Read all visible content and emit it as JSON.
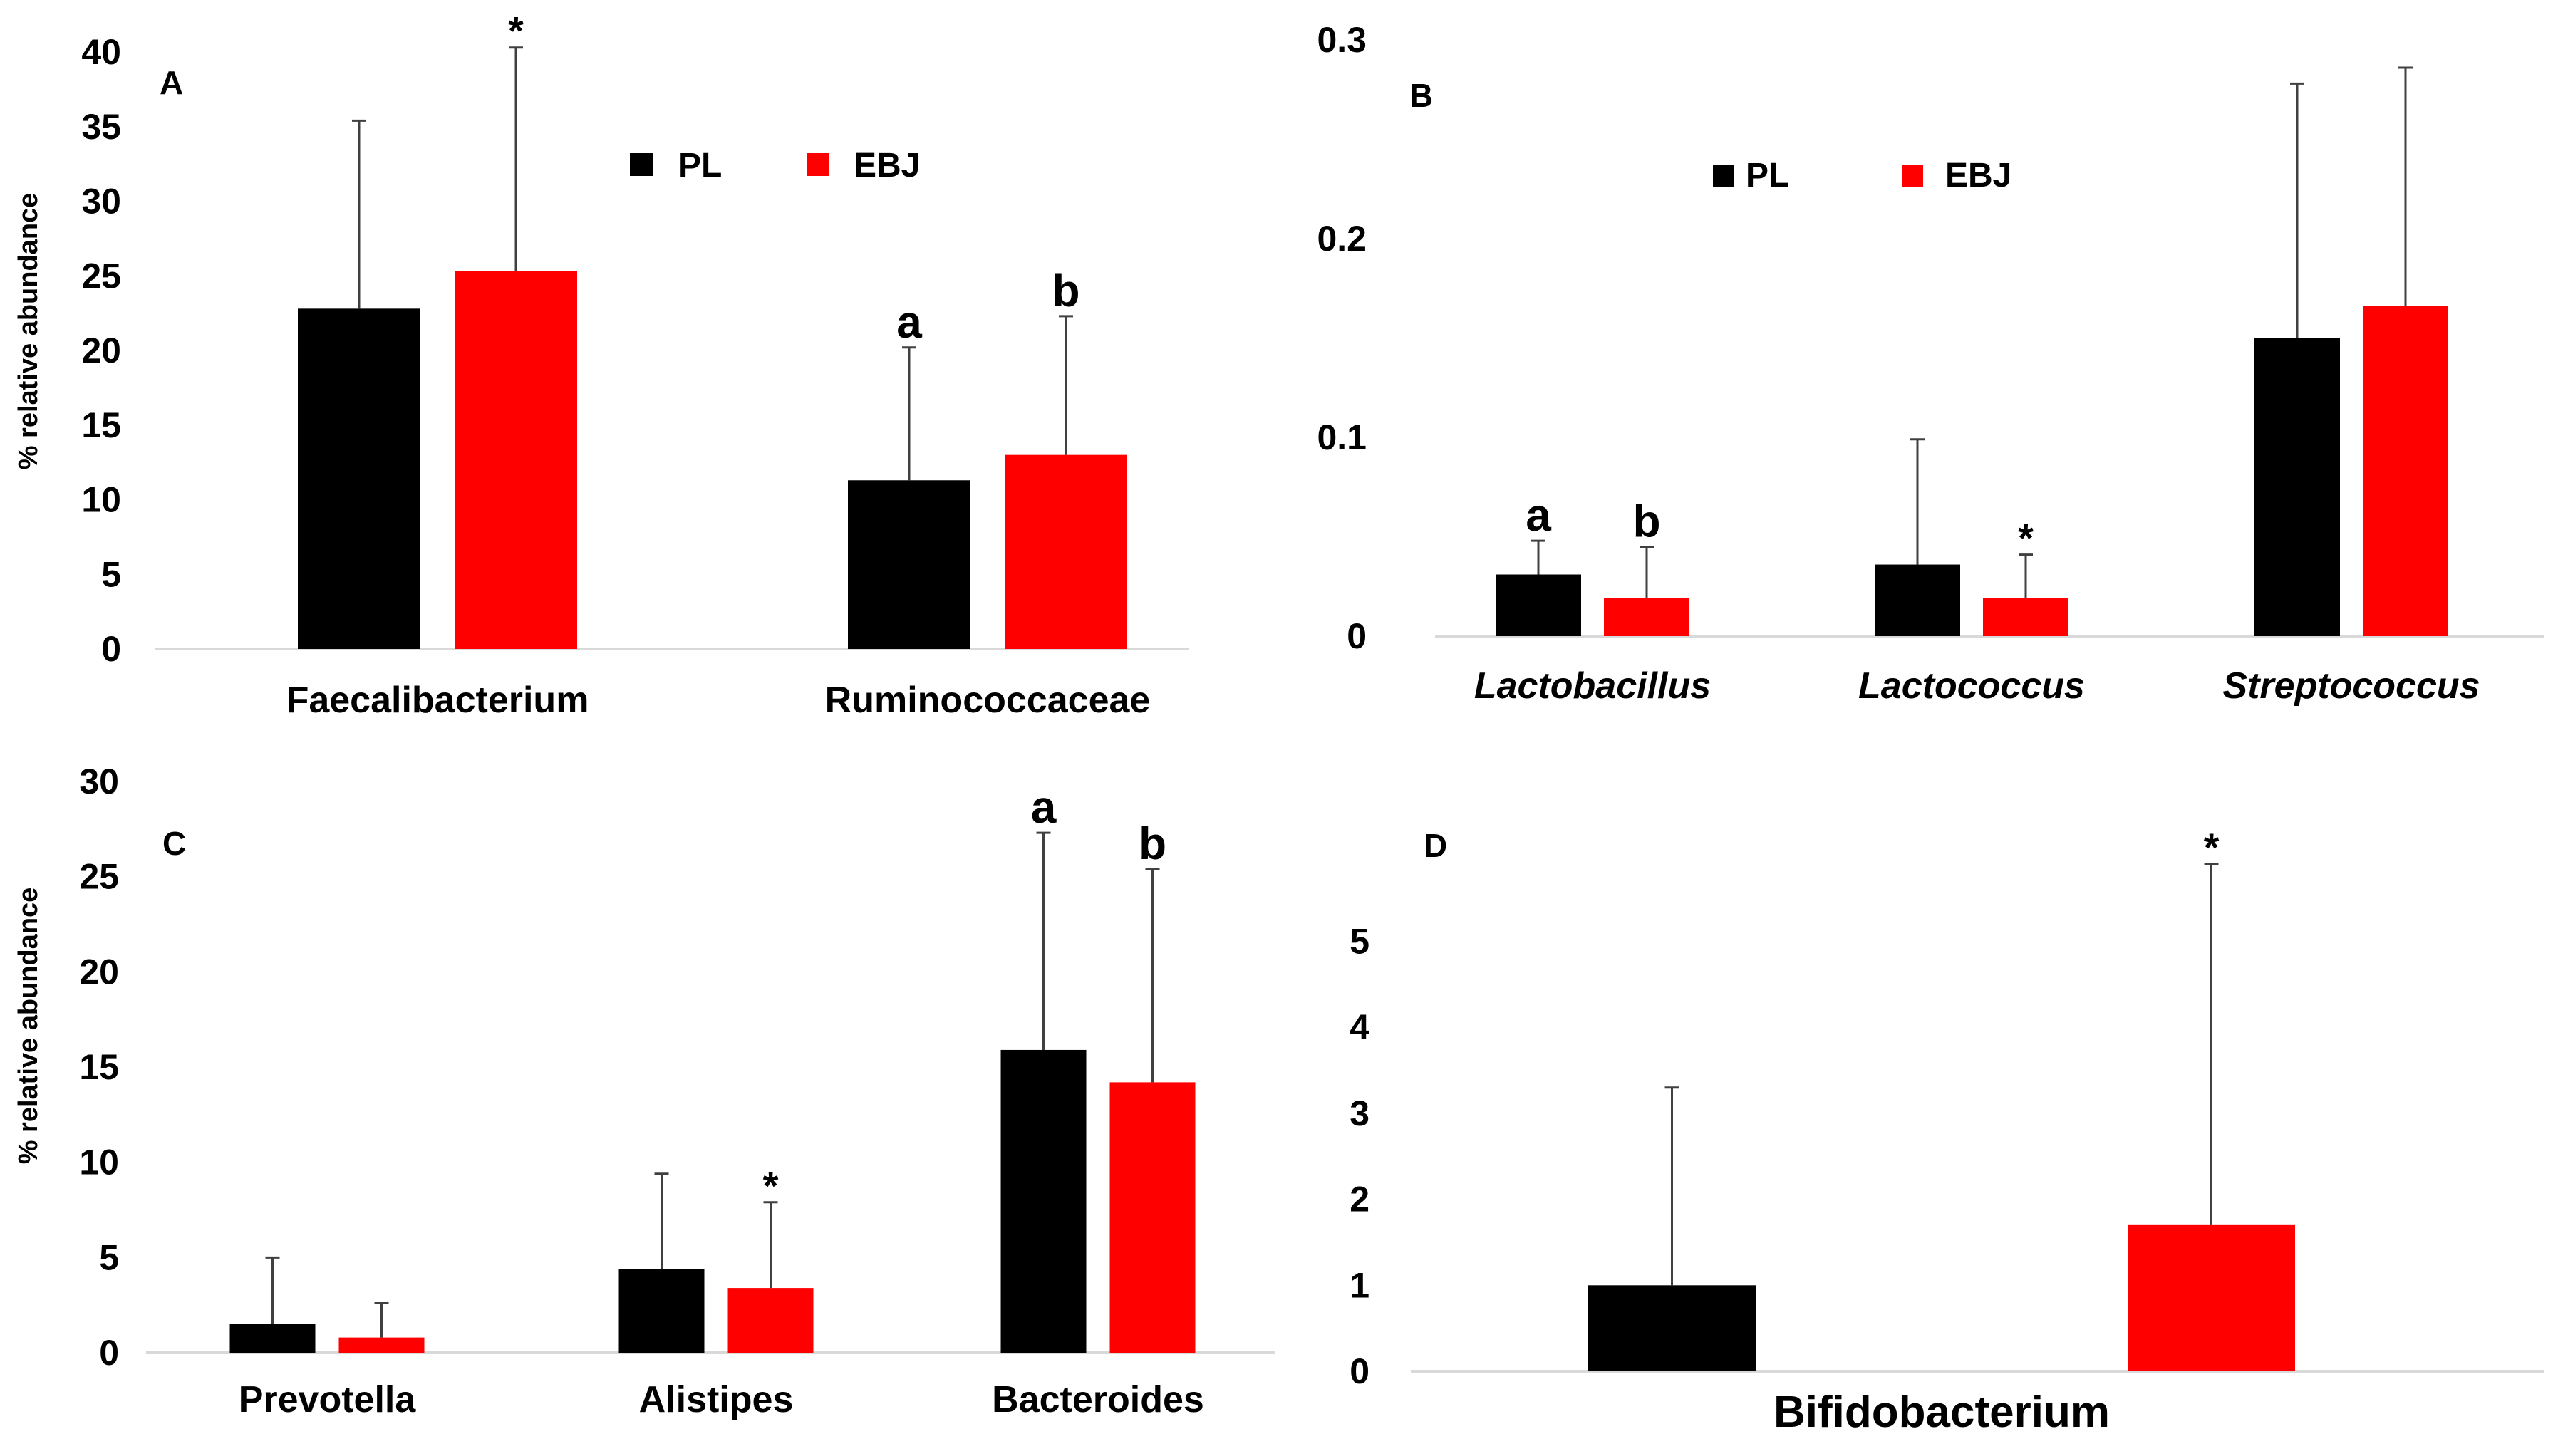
{
  "legend": {
    "pl_label": "PL",
    "ebj_label": "EBJ"
  },
  "colors": {
    "PL": "#000000",
    "EBJ": "#ff0000"
  },
  "chart_data": [
    {
      "panel": "A",
      "type": "bar",
      "ylabel": "% relative abundance",
      "ylim": [
        0,
        40
      ],
      "yticks": [
        0,
        5,
        10,
        15,
        20,
        25,
        30,
        35,
        40
      ],
      "categories": [
        "Faecalibacterium",
        "Ruminococcaceae"
      ],
      "italic_categories": false,
      "series": [
        {
          "name": "PL",
          "values": [
            22.8,
            11.3
          ],
          "errors": [
            12.6,
            8.9
          ]
        },
        {
          "name": "EBJ",
          "values": [
            25.3,
            13.0
          ],
          "errors": [
            15.0,
            9.3
          ]
        }
      ],
      "annotations": [
        {
          "category": 0,
          "series": 1,
          "text": "*"
        },
        {
          "category": 1,
          "series": 0,
          "text": "a"
        },
        {
          "category": 1,
          "series": 1,
          "text": "b"
        }
      ]
    },
    {
      "panel": "B",
      "type": "bar",
      "ylabel": "",
      "ylim": [
        0,
        0.3
      ],
      "yticks": [
        0,
        0.1,
        0.2,
        0.3
      ],
      "categories": [
        "Lactobacillus",
        "Lactococcus",
        "Streptococcus"
      ],
      "italic_categories": true,
      "series": [
        {
          "name": "PL",
          "values": [
            0.031,
            0.036,
            0.15
          ],
          "errors": [
            0.017,
            0.063,
            0.128
          ]
        },
        {
          "name": "EBJ",
          "values": [
            0.019,
            0.019,
            0.166
          ],
          "errors": [
            0.026,
            0.022,
            0.12
          ]
        }
      ],
      "annotations": [
        {
          "category": 0,
          "series": 0,
          "text": "a"
        },
        {
          "category": 0,
          "series": 1,
          "text": "b"
        },
        {
          "category": 1,
          "series": 1,
          "text": "*"
        }
      ]
    },
    {
      "panel": "C",
      "type": "bar",
      "ylabel": "% relative abundance",
      "ylim": [
        0,
        30
      ],
      "yticks": [
        0,
        5,
        10,
        15,
        20,
        25,
        30
      ],
      "categories": [
        "Prevotella",
        "Alistipes",
        "Bacteroides"
      ],
      "italic_categories": false,
      "series": [
        {
          "name": "PL",
          "values": [
            1.5,
            4.4,
            15.9
          ],
          "errors": [
            3.5,
            5.0,
            11.4
          ]
        },
        {
          "name": "EBJ",
          "values": [
            0.8,
            3.4,
            14.2
          ],
          "errors": [
            1.8,
            4.5,
            11.2
          ]
        }
      ],
      "annotations": [
        {
          "category": 1,
          "series": 1,
          "text": "*"
        },
        {
          "category": 2,
          "series": 0,
          "text": "a"
        },
        {
          "category": 2,
          "series": 1,
          "text": "b"
        }
      ]
    },
    {
      "panel": "D",
      "type": "bar",
      "ylabel": "",
      "ylim": [
        0,
        5.8
      ],
      "yticks": [
        0,
        1,
        2,
        3,
        4,
        5
      ],
      "categories": [
        "Bifidobacterium"
      ],
      "italic_categories": false,
      "series": [
        {
          "name": "PL",
          "values": [
            1.0
          ],
          "errors": [
            2.3
          ]
        },
        {
          "name": "EBJ",
          "values": [
            1.7
          ],
          "errors": [
            4.2
          ]
        }
      ],
      "annotations": [
        {
          "category": 0,
          "series": 1,
          "text": "*"
        }
      ]
    }
  ]
}
